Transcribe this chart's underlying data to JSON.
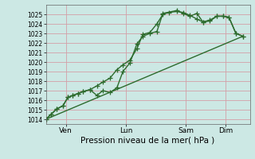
{
  "bg_color": "#cce8e4",
  "grid_color": "#d4a0a8",
  "line_color": "#2d6b2d",
  "marker": "+",
  "markersize": 4,
  "linewidth": 1.0,
  "xlabel": "Pression niveau de la mer( hPa )",
  "ylim": [
    1013.5,
    1026.0
  ],
  "yticks": [
    1014,
    1015,
    1016,
    1017,
    1018,
    1019,
    1020,
    1021,
    1022,
    1023,
    1024,
    1025
  ],
  "xtick_labels": [
    "Ven",
    "Lun",
    "Sam",
    "Dim"
  ],
  "xtick_positions": [
    1,
    4,
    7,
    9
  ],
  "xlim": [
    0,
    10.2
  ],
  "line1_x": [
    0,
    0.25,
    0.55,
    0.85,
    1.1,
    1.35,
    1.6,
    1.85,
    2.2,
    2.55,
    2.85,
    3.2,
    3.55,
    3.85,
    4.2,
    4.55,
    4.85,
    5.2,
    5.55,
    5.85,
    6.15,
    6.55,
    6.85,
    7.2,
    7.55,
    7.85,
    8.2,
    8.55,
    8.85,
    9.15,
    9.5,
    9.85
  ],
  "line1_y": [
    1014.0,
    1014.5,
    1015.1,
    1015.4,
    1016.3,
    1016.5,
    1016.7,
    1016.9,
    1017.1,
    1017.5,
    1017.9,
    1018.3,
    1019.2,
    1019.7,
    1020.2,
    1021.4,
    1022.9,
    1023.1,
    1024.0,
    1025.0,
    1025.2,
    1025.3,
    1025.2,
    1024.9,
    1024.5,
    1024.2,
    1024.3,
    1024.8,
    1024.8,
    1024.7,
    1023.0,
    1022.7
  ],
  "line2_x": [
    0,
    0.25,
    0.55,
    0.85,
    1.1,
    1.35,
    1.6,
    1.85,
    2.2,
    2.55,
    2.85,
    3.2,
    3.55,
    3.85,
    4.2,
    4.55,
    4.85,
    5.2,
    5.55,
    5.85,
    6.55,
    6.85,
    7.2,
    7.55,
    7.85,
    8.2,
    8.55,
    8.85,
    9.15,
    9.5,
    9.85
  ],
  "line2_y": [
    1014.0,
    1014.5,
    1015.1,
    1015.4,
    1016.3,
    1016.5,
    1016.7,
    1016.9,
    1017.1,
    1016.5,
    1017.0,
    1016.8,
    1017.3,
    1019.0,
    1019.9,
    1021.9,
    1022.7,
    1023.0,
    1023.2,
    1025.1,
    1025.4,
    1025.1,
    1024.8,
    1025.1,
    1024.2,
    1024.4,
    1024.8,
    1024.8,
    1024.7,
    1023.0,
    1022.7
  ],
  "line3_x": [
    0,
    9.85
  ],
  "line3_y": [
    1014.0,
    1022.7
  ],
  "ytick_fontsize": 5.5,
  "xtick_fontsize": 6.5,
  "xlabel_fontsize": 7.5
}
